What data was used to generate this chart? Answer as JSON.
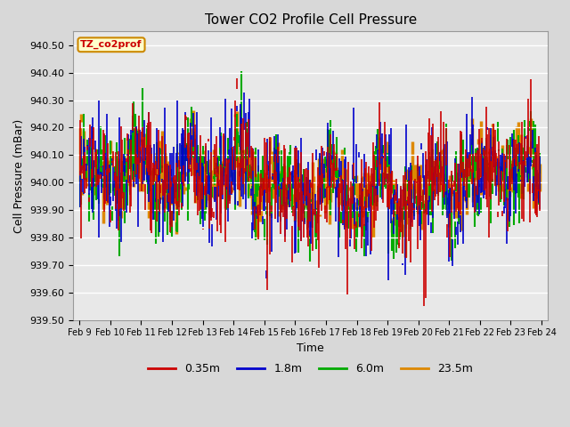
{
  "title": "Tower CO2 Profile Cell Pressure",
  "xlabel": "Time",
  "ylabel": "Cell Pressure (mBar)",
  "ylim": [
    939.5,
    940.55
  ],
  "series": [
    {
      "label": "0.35m",
      "color": "#cc0000",
      "lw": 1.2
    },
    {
      "label": "1.8m",
      "color": "#0000cc",
      "lw": 1.2
    },
    {
      "label": "6.0m",
      "color": "#00aa00",
      "lw": 1.5
    },
    {
      "label": "23.5m",
      "color": "#dd8800",
      "lw": 2.5
    }
  ],
  "xtick_labels": [
    "Feb 9",
    "Feb 10",
    "Feb 11",
    "Feb 12",
    "Feb 13",
    "Feb 14",
    "Feb 15",
    "Feb 16",
    "Feb 17",
    "Feb 18",
    "Feb 19",
    "Feb 20",
    "Feb 21",
    "Feb 22",
    "Feb 23",
    "Feb 24"
  ],
  "annotation_text": "TZ_co2prof",
  "annotation_color": "#cc0000",
  "annotation_bg": "#ffffcc",
  "annotation_edge": "#cc8800",
  "fig_bg": "#d8d8d8",
  "ax_bg": "#e8e8e8",
  "grid_color": "white"
}
